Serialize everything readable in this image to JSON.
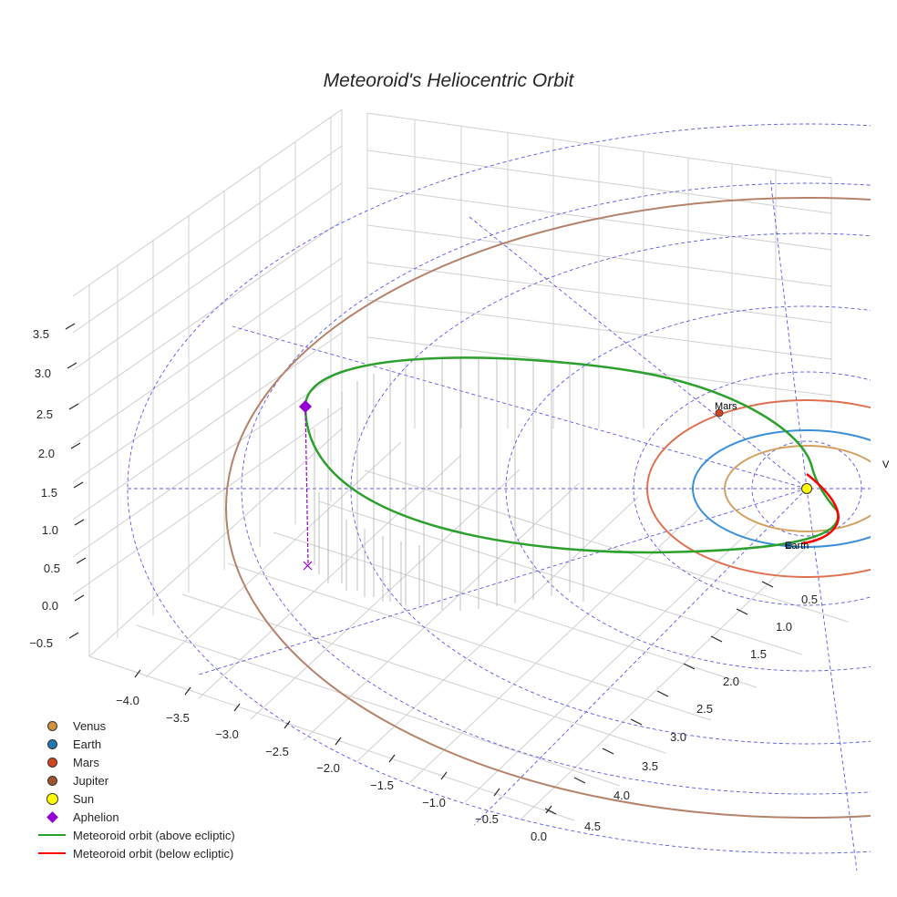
{
  "chart_data": {
    "type": "line",
    "title": "Meteoroid's Heliocentric Orbit",
    "x_ticks": [
      "−4.0",
      "−3.5",
      "−3.0",
      "−2.5",
      "−2.0",
      "−1.5",
      "−1.0",
      "−0.5",
      "0.0"
    ],
    "y_ticks": [
      "0.5",
      "1.0",
      "1.5",
      "2.0",
      "2.5",
      "3.0",
      "3.5",
      "4.0",
      "4.5"
    ],
    "z_ticks": [
      "−0.5",
      "0.0",
      "0.5",
      "1.0",
      "1.5",
      "2.0",
      "2.5",
      "3.0",
      "3.5"
    ],
    "xlim": [
      -4.2,
      0.2
    ],
    "ylim": [
      0.3,
      4.7
    ],
    "zlim": [
      -0.7,
      3.7
    ],
    "clipped_axis_label": "V",
    "planets": [
      {
        "name": "Venus",
        "a_au": 0.72,
        "color": "#d4923a",
        "label_shown": false
      },
      {
        "name": "Earth",
        "a_au": 1.0,
        "color": "#1f77b4",
        "label_shown": true
      },
      {
        "name": "Mars",
        "a_au": 1.52,
        "color": "#d2461e",
        "label_shown": true
      },
      {
        "name": "Jupiter",
        "a_au": 5.2,
        "color": "#a0522d",
        "label_shown": false
      }
    ],
    "meteoroid_orbit": {
      "aphelion_au": 4.2,
      "perihelion_au": 0.3,
      "series": [
        {
          "name": "Meteoroid orbit (above ecliptic)",
          "color": "#2ca02c"
        },
        {
          "name": "Meteoroid orbit (below ecliptic)",
          "color": "#ff0000"
        }
      ]
    },
    "sun": {
      "name": "Sun",
      "color": "#ffff00"
    },
    "aphelion": {
      "name": "Aphelion",
      "color": "#9400d3"
    },
    "annotations": [
      "Mars",
      "Earth"
    ]
  },
  "legend": [
    {
      "label": "Venus",
      "kind": "dot",
      "color": "#d4923a"
    },
    {
      "label": "Earth",
      "kind": "dot",
      "color": "#1f77b4"
    },
    {
      "label": "Mars",
      "kind": "dot",
      "color": "#d2461e"
    },
    {
      "label": "Jupiter",
      "kind": "dot",
      "color": "#a0522d"
    },
    {
      "label": "Sun",
      "kind": "sun",
      "color": "#ffff00"
    },
    {
      "label": "Aphelion",
      "kind": "diamond",
      "color": "#9400d3"
    },
    {
      "label": "Meteoroid orbit (above ecliptic)",
      "kind": "line",
      "color": "#2ca02c"
    },
    {
      "label": "Meteoroid orbit (below ecliptic)",
      "kind": "line",
      "color": "#ff0000"
    }
  ]
}
